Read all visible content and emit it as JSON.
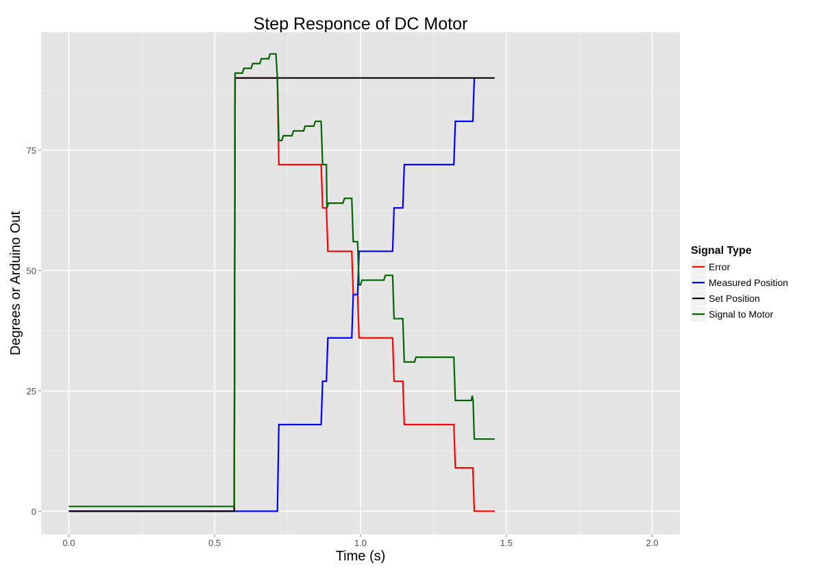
{
  "chart_data": {
    "type": "line",
    "title": "Step Responce of DC Motor",
    "xlabel": "Time (s)",
    "ylabel": "Degrees or Arduino Out",
    "xlim": [
      -0.095,
      2.095
    ],
    "ylim": [
      -4.8,
      99.5
    ],
    "x_ticks": [
      0.0,
      0.5,
      1.0,
      1.5,
      2.0
    ],
    "x_tick_labels": [
      "0.0",
      "0.5",
      "1.0",
      "1.5",
      "2.0"
    ],
    "y_ticks": [
      0,
      25,
      50,
      75
    ],
    "y_tick_labels": [
      "0",
      "25",
      "50",
      "75"
    ],
    "grid": true,
    "legend": {
      "title": "Signal Type",
      "position": "right"
    },
    "series": [
      {
        "name": "Error",
        "color": "#ff0000",
        "x": [
          0.0,
          0.567,
          0.57,
          0.715,
          0.72,
          0.865,
          0.87,
          0.883,
          0.888,
          0.97,
          0.975,
          0.99,
          0.995,
          1.11,
          1.115,
          1.145,
          1.15,
          1.32,
          1.325,
          1.385,
          1.39,
          1.46
        ],
        "y": [
          0,
          0,
          90,
          90,
          72,
          72,
          63,
          63,
          54,
          54,
          45,
          45,
          36,
          36,
          27,
          27,
          18,
          18,
          9,
          9,
          0,
          0
        ]
      },
      {
        "name": "Measured Position",
        "color": "#0000ff",
        "x": [
          0.0,
          0.715,
          0.72,
          0.865,
          0.87,
          0.883,
          0.888,
          0.97,
          0.975,
          0.99,
          0.995,
          1.11,
          1.115,
          1.145,
          1.15,
          1.32,
          1.325,
          1.385,
          1.39
        ],
        "y": [
          0,
          0,
          18,
          18,
          27,
          27,
          36,
          36,
          45,
          45,
          54,
          54,
          63,
          63,
          72,
          72,
          81,
          81,
          90
        ]
      },
      {
        "name": "Set Position",
        "color": "#000000",
        "x": [
          0.0,
          0.567,
          0.57,
          1.46
        ],
        "y": [
          0,
          0,
          90,
          90
        ]
      },
      {
        "name": "Signal to Motor",
        "color": "#006400",
        "x": [
          0.0,
          0.567,
          0.57,
          0.595,
          0.6,
          0.625,
          0.63,
          0.655,
          0.66,
          0.685,
          0.69,
          0.71,
          0.715,
          0.72,
          0.73,
          0.735,
          0.765,
          0.77,
          0.805,
          0.81,
          0.84,
          0.845,
          0.865,
          0.87,
          0.883,
          0.885,
          0.89,
          0.94,
          0.945,
          0.97,
          0.975,
          0.99,
          0.995,
          1.0,
          1.005,
          1.08,
          1.085,
          1.11,
          1.115,
          1.145,
          1.15,
          1.185,
          1.19,
          1.32,
          1.325,
          1.38,
          1.383,
          1.386,
          1.39,
          1.46
        ],
        "y": [
          1,
          1,
          91,
          91,
          92,
          92,
          93,
          93,
          94,
          94,
          95,
          95,
          90,
          77,
          77,
          78,
          78,
          79,
          79,
          80,
          80,
          81,
          81,
          72,
          72,
          63,
          64,
          64,
          65,
          65,
          56,
          56,
          47,
          47,
          48,
          48,
          49,
          49,
          40,
          40,
          31,
          31,
          32,
          32,
          23,
          23,
          24,
          23,
          15,
          15
        ]
      }
    ]
  }
}
